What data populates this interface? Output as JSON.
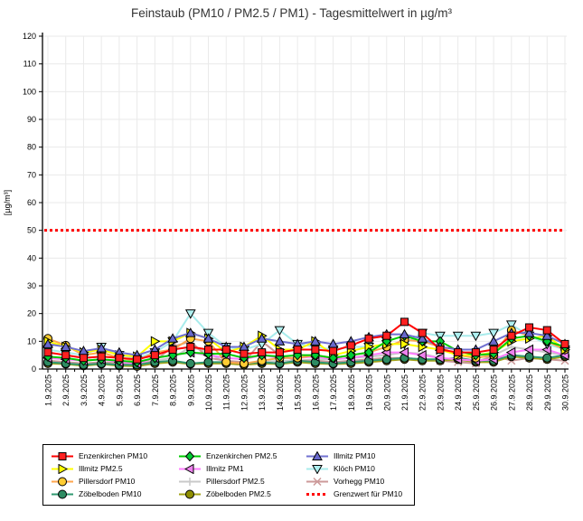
{
  "window": {
    "background": "#ffffff"
  },
  "chart_data": {
    "type": "line",
    "title": "Feinstaub (PM10 / PM2.5 / PM1) -  Tagesmittelwert in µg/m³",
    "ylabel": "[µg/m³]",
    "ylim": [
      0,
      120
    ],
    "ytick_interval": 10,
    "grid": true,
    "legend_position": "bottom-left-box",
    "x": [
      "1.9.2025",
      "2.9.2025",
      "3.9.2025",
      "4.9.2025",
      "5.9.2025",
      "6.9.2025",
      "7.9.2025",
      "8.9.2025",
      "9.9.2025",
      "10.9.2025",
      "11.9.2025",
      "12.9.2025",
      "13.9.2025",
      "14.9.2025",
      "15.9.2025",
      "16.9.2025",
      "17.9.2025",
      "18.9.2025",
      "19.9.2025",
      "20.9.2025",
      "21.9.2025",
      "22.9.2025",
      "23.9.2025",
      "24.9.2025",
      "25.9.2025",
      "26.9.2025",
      "27.9.2025",
      "28.9.2025",
      "29.9.2025",
      "30.9.2025"
    ],
    "series": [
      {
        "name": "Enzenkirchen PM10",
        "color": "#ff0000",
        "marker": "square",
        "marker_fill": "#ff2020",
        "values": [
          6,
          5,
          4,
          4.5,
          4,
          3.5,
          5,
          7,
          8,
          7,
          7,
          5.5,
          6,
          6,
          7,
          7,
          6.5,
          8.5,
          11,
          12,
          17,
          13,
          7,
          6,
          6,
          7,
          12,
          15,
          14,
          9
        ]
      },
      {
        "name": "Enzenkirchen PM2.5",
        "color": "#00cc00",
        "marker": "diamond",
        "marker_fill": "#00cc33",
        "values": [
          4.5,
          4,
          3,
          3.5,
          3,
          2.5,
          4,
          5,
          6,
          5.5,
          5.5,
          4,
          5,
          4.5,
          5,
          5,
          4,
          5,
          6,
          10,
          12,
          10,
          10,
          6.5,
          5,
          5.5,
          11,
          12,
          10,
          8
        ]
      },
      {
        "name": "Illmitz PM10",
        "color": "#7070d0",
        "marker": "triangle-up",
        "marker_fill": "#6868cc",
        "values": [
          9,
          8,
          6.5,
          7.5,
          6,
          5,
          7,
          11,
          13,
          11,
          8,
          8,
          11,
          10,
          9,
          10,
          9,
          10,
          11.5,
          12.5,
          12.5,
          11,
          8,
          7,
          7,
          10,
          13,
          13,
          12,
          9
        ]
      },
      {
        "name": "Illmitz PM2.5",
        "color": "#ffff00",
        "marker": "triangle-right",
        "marker_fill": "#ffff00",
        "values": [
          10,
          8,
          6,
          7,
          5,
          4.5,
          10,
          10,
          13,
          11,
          6,
          8,
          12,
          7,
          7,
          10,
          5,
          6.5,
          8,
          9,
          9,
          8,
          7,
          5,
          5,
          6,
          10,
          11,
          12,
          7
        ]
      },
      {
        "name": "Illmitz PM1",
        "color": "#ff7dff",
        "marker": "triangle-left",
        "marker_fill": "#ee82ee",
        "values": [
          4,
          3.5,
          3,
          3.5,
          2.5,
          2,
          4,
          5,
          6,
          5,
          4,
          3.5,
          5,
          4,
          4,
          4.5,
          3.5,
          4,
          5,
          6,
          6,
          5,
          4,
          3.5,
          3,
          3.5,
          6,
          7,
          7,
          5
        ]
      },
      {
        "name": "Klöch PM10",
        "color": "#a8ecec",
        "marker": "triangle-down",
        "marker_fill": "#aef0f0",
        "values": [
          7,
          6,
          5,
          8,
          5,
          4,
          6,
          10,
          20,
          13,
          8,
          7,
          9,
          14,
          9,
          8,
          7,
          8,
          8,
          9,
          9,
          13,
          12,
          12,
          12,
          13,
          16,
          12,
          9,
          7
        ]
      },
      {
        "name": "Pillersdorf PM10",
        "color": "#ffa64d",
        "marker": "circle",
        "marker_fill": "#ffcc33",
        "values": [
          11,
          8.5,
          5,
          6,
          4,
          3,
          6,
          7,
          11,
          10,
          2.5,
          2,
          3,
          4,
          4,
          5,
          4,
          5,
          6,
          8,
          10.5,
          10,
          8,
          5,
          4,
          5,
          14,
          12,
          10,
          7
        ]
      },
      {
        "name": "Pillersdorf PM2.5",
        "color": "#c9c9c9",
        "marker": "plus",
        "marker_fill": "#c9c9c9",
        "values": [
          3,
          2.5,
          2,
          2.5,
          2,
          1.5,
          3,
          4,
          8,
          6,
          2,
          1.5,
          2.5,
          3,
          3,
          3.5,
          3.5,
          4,
          4.5,
          5,
          6,
          5.5,
          4,
          3,
          2.5,
          5,
          8,
          7,
          6,
          5
        ]
      },
      {
        "name": "Vorhegg PM10",
        "color": "#cc9999",
        "marker": "x",
        "marker_fill": "#cc9999",
        "values": [
          3,
          2.5,
          2,
          2.5,
          2,
          1.5,
          3,
          8,
          10,
          4,
          3,
          2.5,
          10,
          5,
          3,
          3,
          2.5,
          3,
          3.5,
          4,
          4,
          3.5,
          3,
          2.5,
          2,
          5,
          3,
          4,
          3.5,
          3
        ]
      },
      {
        "name": "Zöbelboden PM10",
        "color": "#2f9970",
        "marker": "circle",
        "marker_fill": "#2e8b62",
        "values": [
          2.5,
          2,
          1.5,
          2,
          1.5,
          1.5,
          2.5,
          3,
          2,
          2.5,
          2.5,
          2,
          2.5,
          2,
          3,
          2.5,
          2,
          2.5,
          3,
          3.5,
          4,
          3.5,
          3.5,
          4,
          3,
          3,
          5,
          4.5,
          4,
          5
        ]
      },
      {
        "name": "Zöbelboden PM2.5",
        "color": "#a3a317",
        "marker": "circle",
        "marker_fill": "#8f8f00",
        "values": [
          2,
          1.8,
          1.2,
          1.8,
          1.2,
          1,
          2,
          2.5,
          1.8,
          2,
          2,
          1.5,
          2,
          1.8,
          2.5,
          2,
          1.8,
          2,
          2.5,
          3,
          3.5,
          3,
          3,
          3.5,
          2.5,
          2.5,
          4.5,
          4,
          3.5,
          4.5
        ]
      }
    ],
    "draw_order": [
      "Pillersdorf PM2.5",
      "Vorhegg PM10",
      "Zöbelboden PM2.5",
      "Zöbelboden PM10",
      "Illmitz PM1",
      "Klöch PM10",
      "Pillersdorf PM10",
      "Illmitz PM2.5",
      "Enzenkirchen PM2.5",
      "Illmitz PM10",
      "Enzenkirchen PM10"
    ],
    "limit_line": {
      "name": "Grenzwert für PM10",
      "value": 50,
      "color": "#ff0000",
      "style": "dotted"
    }
  }
}
